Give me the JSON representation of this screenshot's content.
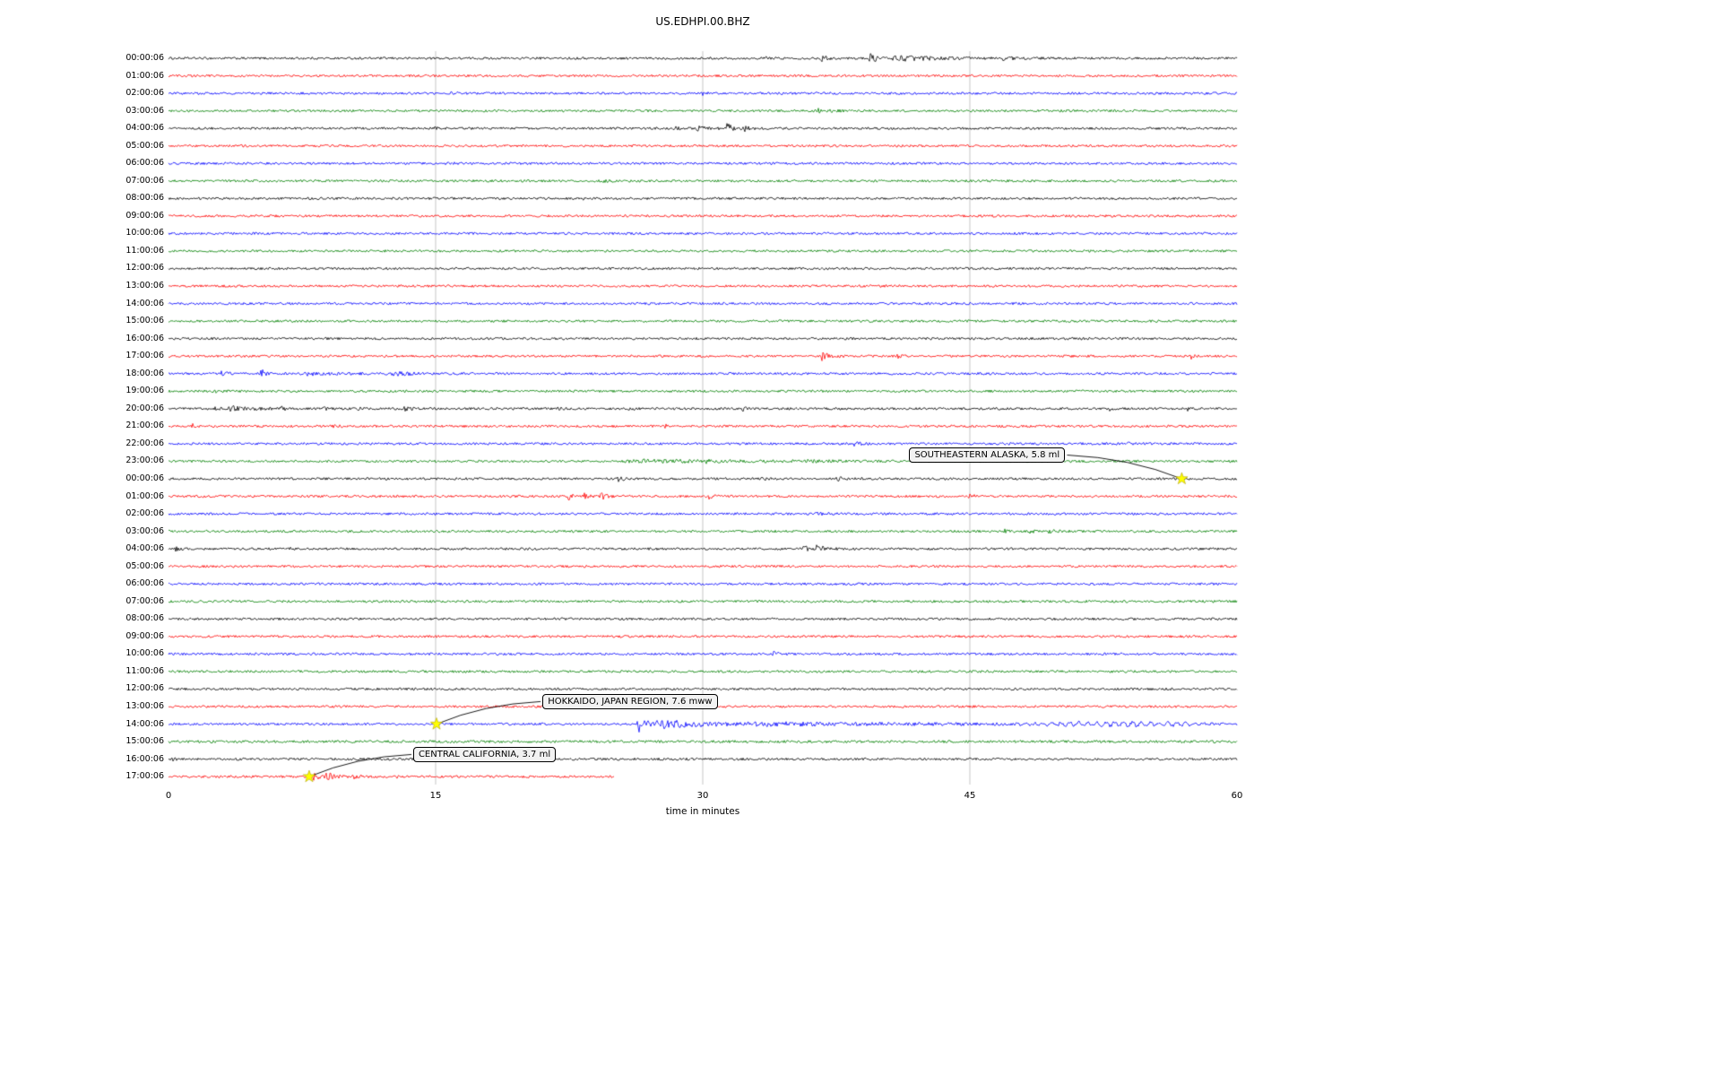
{
  "chart_data": {
    "type": "line",
    "subtype": "seismogram-dayplot",
    "title": "US.EDHPI.00.BHZ",
    "xlabel": "time in minutes",
    "ylabel": "",
    "xlim": [
      0,
      60
    ],
    "xticks": [
      0,
      15,
      30,
      45,
      60
    ],
    "grid": "vertical-at-15-30-45",
    "color_cycle": [
      "#000000",
      "#ff0000",
      "#0000ff",
      "#008000"
    ],
    "rows": [
      {
        "label": "00:00:06",
        "color": "#000000",
        "bursts": [
          [
            33.5,
            0.5,
            2
          ],
          [
            36.6,
            0.6,
            3.5
          ],
          [
            39.3,
            1.2,
            5
          ],
          [
            40.6,
            4.5,
            3
          ],
          [
            46.8,
            1.2,
            2.5
          ]
        ]
      },
      {
        "label": "01:00:06",
        "color": "#ff0000",
        "bursts": []
      },
      {
        "label": "02:00:06",
        "color": "#0000ff",
        "bursts": [
          [
            15.8,
            0.8,
            1.2
          ],
          [
            29.9,
            0.4,
            2.5
          ]
        ]
      },
      {
        "label": "03:00:06",
        "color": "#008000",
        "bursts": [
          [
            36.4,
            1.2,
            3.5
          ]
        ]
      },
      {
        "label": "04:00:06",
        "color": "#000000",
        "bursts": [
          [
            14.9,
            0.3,
            4
          ],
          [
            16.6,
            0.3,
            2.5
          ],
          [
            28.2,
            0.8,
            2.5
          ],
          [
            29.6,
            1.5,
            2.5
          ],
          [
            31.3,
            0.8,
            6
          ],
          [
            32.3,
            0.6,
            3
          ]
        ]
      },
      {
        "label": "05:00:06",
        "color": "#ff0000",
        "bursts": []
      },
      {
        "label": "06:00:06",
        "color": "#0000ff",
        "bursts": [
          [
            15.5,
            1.0,
            1.0
          ]
        ]
      },
      {
        "label": "07:00:06",
        "color": "#008000",
        "bursts": [
          [
            24.3,
            1.0,
            1.2
          ]
        ]
      },
      {
        "label": "08:00:06",
        "color": "#000000",
        "bursts": [
          [
            23.2,
            0.3,
            1.8
          ]
        ]
      },
      {
        "label": "09:00:06",
        "color": "#ff0000",
        "bursts": []
      },
      {
        "label": "10:00:06",
        "color": "#0000ff",
        "bursts": []
      },
      {
        "label": "11:00:06",
        "color": "#008000",
        "bursts": []
      },
      {
        "label": "12:00:06",
        "color": "#000000",
        "bursts": []
      },
      {
        "label": "13:00:06",
        "color": "#ff0000",
        "bursts": [
          [
            21.7,
            0.3,
            1.8
          ]
        ]
      },
      {
        "label": "14:00:06",
        "color": "#0000ff",
        "bursts": []
      },
      {
        "label": "15:00:06",
        "color": "#008000",
        "bursts": []
      },
      {
        "label": "16:00:06",
        "color": "#000000",
        "bursts": [
          [
            0.3,
            0.3,
            2.5
          ]
        ]
      },
      {
        "label": "17:00:06",
        "color": "#ff0000",
        "bursts": [
          [
            36.6,
            1.0,
            5
          ],
          [
            40.9,
            0.6,
            3
          ],
          [
            50.2,
            0.4,
            2
          ],
          [
            57.4,
            0.4,
            3.5
          ]
        ]
      },
      {
        "label": "18:00:06",
        "color": "#0000ff",
        "bursts": [
          [
            2.9,
            0.8,
            2.5
          ],
          [
            5.15,
            0.3,
            13
          ],
          [
            7.5,
            3.5,
            2.2
          ],
          [
            12.5,
            2.5,
            2
          ]
        ]
      },
      {
        "label": "19:00:06",
        "color": "#008000",
        "bursts": [
          [
            2.5,
            1.0,
            2
          ]
        ]
      },
      {
        "label": "20:00:06",
        "color": "#000000",
        "bursts": [
          [
            2.6,
            0.5,
            3
          ],
          [
            3.3,
            2.5,
            3
          ],
          [
            6.3,
            0.5,
            2
          ],
          [
            8.6,
            0.6,
            3
          ],
          [
            10.5,
            0.5,
            2
          ],
          [
            13.2,
            0.8,
            2.5
          ],
          [
            21.8,
            0.4,
            2
          ],
          [
            25.8,
            0.5,
            2
          ],
          [
            28.2,
            0.5,
            2
          ],
          [
            32.2,
            0.4,
            3
          ],
          [
            52.8,
            0.4,
            2
          ],
          [
            57.2,
            0.4,
            2.5
          ]
        ]
      },
      {
        "label": "21:00:06",
        "color": "#ff0000",
        "bursts": [
          [
            1.3,
            0.4,
            2.5
          ],
          [
            9.2,
            0.5,
            2
          ],
          [
            27.8,
            0.4,
            2.5
          ]
        ]
      },
      {
        "label": "22:00:06",
        "color": "#0000ff",
        "bursts": [
          [
            38.4,
            0.8,
            2.5
          ],
          [
            53.6,
            0.8,
            2
          ]
        ]
      },
      {
        "label": "23:00:06",
        "color": "#008000",
        "bursts": [
          [
            25.5,
            12,
            1.8
          ],
          [
            30.1,
            0.4,
            3
          ],
          [
            35.8,
            2.5,
            1.5
          ]
        ]
      },
      {
        "label": "00:00:06",
        "color": "#000000",
        "bursts": [
          [
            25.2,
            0.6,
            3
          ],
          [
            33.2,
            0.6,
            3
          ],
          [
            37.3,
            1.0,
            3.5
          ]
        ]
      },
      {
        "label": "01:00:06",
        "color": "#ff0000",
        "bursts": [
          [
            22.4,
            0.5,
            5
          ],
          [
            23.2,
            0.5,
            5
          ],
          [
            24.2,
            0.8,
            4
          ],
          [
            30.3,
            0.5,
            3
          ],
          [
            44.9,
            0.6,
            2.5
          ],
          [
            45.8,
            0.4,
            2.5
          ]
        ]
      },
      {
        "label": "02:00:06",
        "color": "#0000ff",
        "bursts": [
          [
            36.3,
            0.8,
            2
          ]
        ]
      },
      {
        "label": "03:00:06",
        "color": "#008000",
        "bursts": [
          [
            46.9,
            0.4,
            2.5
          ],
          [
            48.3,
            0.6,
            2
          ],
          [
            49.3,
            1.5,
            1.5
          ]
        ]
      },
      {
        "label": "04:00:06",
        "color": "#000000",
        "bursts": [
          [
            0.3,
            0.4,
            3
          ],
          [
            6.8,
            0.3,
            1.5
          ],
          [
            35.6,
            0.8,
            3
          ],
          [
            36.3,
            1.0,
            5
          ]
        ]
      },
      {
        "label": "05:00:06",
        "color": "#ff0000",
        "bursts": []
      },
      {
        "label": "06:00:06",
        "color": "#0000ff",
        "bursts": []
      },
      {
        "label": "07:00:06",
        "color": "#008000",
        "bursts": []
      },
      {
        "label": "08:00:06",
        "color": "#000000",
        "bursts": []
      },
      {
        "label": "09:00:06",
        "color": "#ff0000",
        "bursts": []
      },
      {
        "label": "10:00:06",
        "color": "#0000ff",
        "bursts": [
          [
            33.9,
            0.8,
            2.5
          ]
        ]
      },
      {
        "label": "11:00:06",
        "color": "#008000",
        "bursts": []
      },
      {
        "label": "12:00:06",
        "color": "#000000",
        "bursts": []
      },
      {
        "label": "13:00:06",
        "color": "#ff0000",
        "bursts": []
      },
      {
        "label": "14:00:06",
        "color": "#0000ff",
        "bursts": [
          [
            26.3,
            1.0,
            11
          ],
          [
            27.2,
            6,
            5
          ],
          [
            32,
            28,
            1.5
          ]
        ],
        "osc": [
          [
            47,
            13,
            2.2,
            2.0
          ]
        ]
      },
      {
        "label": "15:00:06",
        "color": "#008000",
        "bursts": [],
        "noise": 1.1
      },
      {
        "label": "16:00:06",
        "color": "#000000",
        "bursts": [
          [
            0.2,
            0.3,
            2
          ]
        ]
      },
      {
        "label": "17:00:06",
        "color": "#ff0000",
        "bursts": [
          [
            8.1,
            0.5,
            8
          ],
          [
            8.8,
            1.2,
            6
          ],
          [
            10.2,
            0.8,
            3
          ],
          [
            12.6,
            0.4,
            2.5
          ]
        ],
        "end": 25
      }
    ],
    "events": [
      {
        "label": "SOUTHEASTERN ALASKA, 5.8 ml",
        "marker": {
          "row": 24,
          "minute": 56.9
        },
        "box": {
          "row": 22.67,
          "minute": 41.6
        },
        "attach": "right",
        "marker_color": "#ffff00"
      },
      {
        "label": "HOKKAIDO, JAPAN REGION, 7.6 mww",
        "marker": {
          "row": 38,
          "minute": 15.05
        },
        "box": {
          "row": 36.74,
          "minute": 21.0
        },
        "attach": "left",
        "marker_color": "#ffff00"
      },
      {
        "label": "CENTRAL CALIFORNIA, 3.7 ml",
        "marker": {
          "row": 41,
          "minute": 7.9
        },
        "box": {
          "row": 39.76,
          "minute": 13.74
        },
        "attach": "left",
        "marker_color": "#ffff00"
      }
    ]
  }
}
